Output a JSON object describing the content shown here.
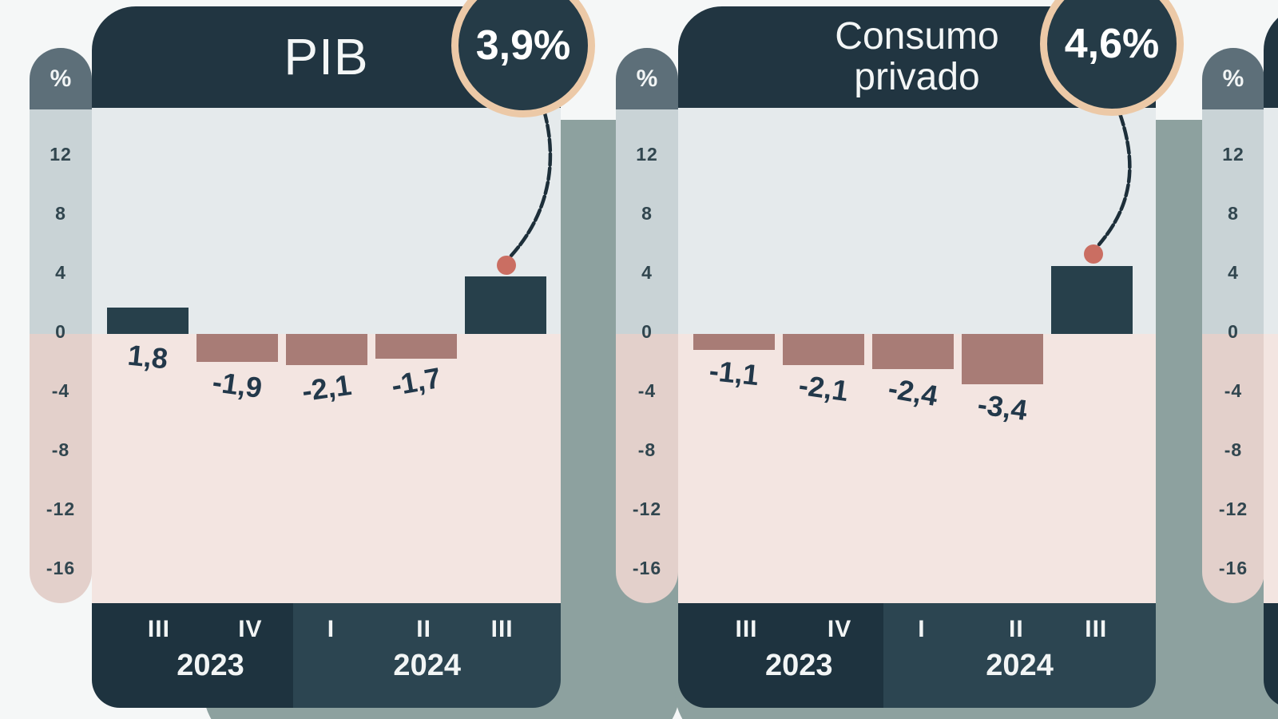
{
  "axis": {
    "unit": "%",
    "ticks": [
      "12",
      "8",
      "4",
      "0",
      "-4",
      "-8",
      "-12",
      "-16"
    ]
  },
  "footer": {
    "year_groups": [
      {
        "year": "2023",
        "quarters": [
          "III",
          "IV"
        ]
      },
      {
        "year": "2024",
        "quarters": [
          "I",
          "II",
          "III"
        ]
      }
    ]
  },
  "chart_data": [
    {
      "type": "bar",
      "title": "PIB",
      "callout": "3,9%",
      "unit": "%",
      "categories": [
        "III 2023",
        "IV 2023",
        "I 2024",
        "II 2024",
        "III 2024"
      ],
      "values": [
        1.8,
        -1.9,
        -2.1,
        -1.7,
        3.9
      ],
      "value_labels": [
        "1,8",
        "-1,9",
        "-2,1",
        "-1,7",
        ""
      ],
      "highlight_index": 4,
      "ylim": [
        -18,
        15
      ],
      "axis_ticks": [
        12,
        8,
        4,
        0,
        -4,
        -8,
        -12,
        -16
      ],
      "grid": false,
      "legend": false
    },
    {
      "type": "bar",
      "title": "Consumo privado",
      "callout": "4,6%",
      "unit": "%",
      "categories": [
        "III 2023",
        "IV 2023",
        "I 2024",
        "II 2024",
        "III 2024"
      ],
      "values": [
        -1.1,
        -2.1,
        -2.4,
        -3.4,
        4.6
      ],
      "value_labels": [
        "-1,1",
        "-2,1",
        "-2,4",
        "-3,4",
        ""
      ],
      "highlight_index": 4,
      "ylim": [
        -18,
        15
      ],
      "axis_ticks": [
        12,
        8,
        4,
        0,
        -4,
        -8,
        -12,
        -16
      ],
      "grid": false,
      "legend": false
    },
    {
      "type": "bar",
      "title": "",
      "callout": "",
      "unit": "%",
      "categories": [],
      "values": [],
      "value_labels": [],
      "axis_ticks": [
        12,
        8,
        4,
        0,
        -4,
        -8,
        -12,
        -16
      ],
      "note": "third chart cut off at right edge of screenshot"
    }
  ],
  "colors": {
    "page_background": "#f5f7f7",
    "card_header": "#213541",
    "footer_left": "#1e333f",
    "footer_right": "#2c4551",
    "positive_bar": "#27404b",
    "negative_bar": "#a87c76",
    "plot_above_zero": "#e5eaec",
    "plot_below_zero": "#f3e5e1",
    "pill_header": "#5d6f79",
    "pill_above_zero": "#c9d3d6",
    "pill_below_zero": "#e3d0cb",
    "tick_text": "#31464f",
    "value_text": "#22384a",
    "shadow_sage": "#8da19f",
    "callout_dot": "#ca6e62",
    "badge_ring": "#ecc9a7",
    "badge_fill": "#253b47"
  }
}
